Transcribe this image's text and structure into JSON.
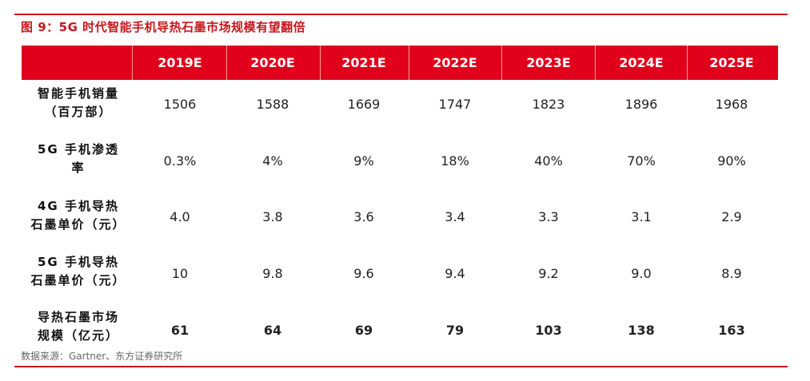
{
  "figure": {
    "title": "图 9：5G 时代智能手机导热石墨市场规模有望翻倍",
    "source": "数据来源：Gartner、东方证券研究所"
  },
  "table": {
    "columns": [
      "2019E",
      "2020E",
      "2021E",
      "2022E",
      "2023E",
      "2024E",
      "2025E"
    ],
    "rows": [
      {
        "label_lines": [
          "智能手机销量",
          "（百万部）"
        ],
        "values": [
          "1506",
          "1588",
          "1669",
          "1747",
          "1823",
          "1896",
          "1968"
        ],
        "bold": false
      },
      {
        "label_lines": [
          "5G 手机渗透",
          "率"
        ],
        "values": [
          "0.3%",
          "4%",
          "9%",
          "18%",
          "40%",
          "70%",
          "90%"
        ],
        "bold": false
      },
      {
        "label_lines": [
          "4G 手机导热",
          "石墨单价（元）"
        ],
        "values": [
          "4.0",
          "3.8",
          "3.6",
          "3.4",
          "3.3",
          "3.1",
          "2.9"
        ],
        "bold": false
      },
      {
        "label_lines": [
          "5G 手机导热",
          "石墨单价（元）"
        ],
        "values": [
          "10",
          "9.8",
          "9.6",
          "9.4",
          "9.2",
          "9.0",
          "8.9"
        ],
        "bold": false
      },
      {
        "label_lines": [
          "导热石墨市场",
          "规模（亿元）"
        ],
        "values": [
          "61",
          "64",
          "69",
          "79",
          "103",
          "138",
          "163"
        ],
        "bold": true
      }
    ]
  },
  "colors": {
    "header_band": "#e0001b",
    "accent_rule": "#c8161d",
    "header_text": "#ffffff"
  }
}
